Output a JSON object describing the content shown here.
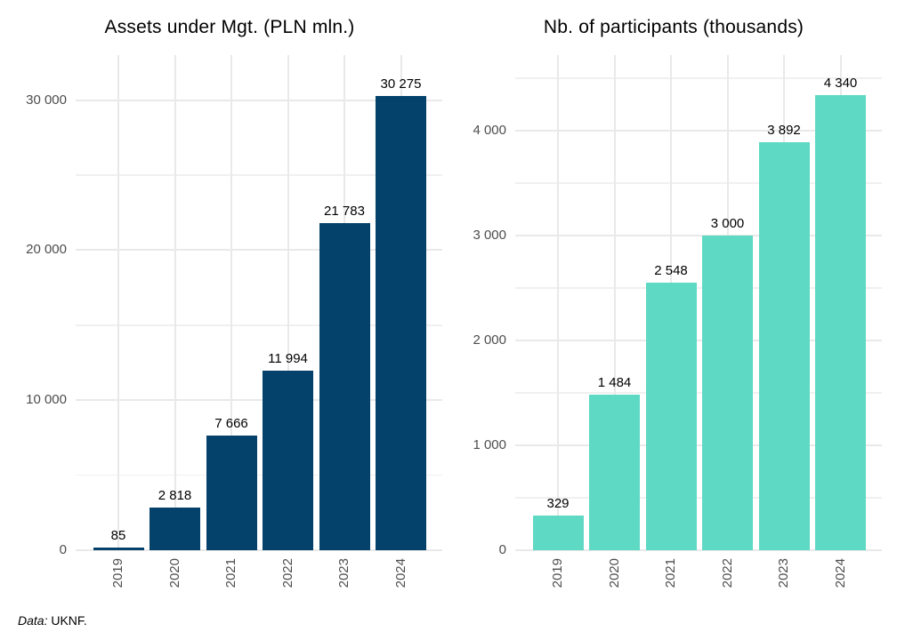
{
  "footer": {
    "source_label": "Data:",
    "source_value": " UKNF."
  },
  "colors": {
    "assets_bar": "#04426b",
    "participants_bar": "#5ed9c4",
    "axis_text": "#4d4d4d",
    "grid_major": "#e9e9e9",
    "grid_minor": "#f0f0f0",
    "title_text": "#000000"
  },
  "chart_data": [
    {
      "type": "bar",
      "title": "Assets under Mgt. (PLN mln.)",
      "xlabel": "",
      "ylabel": "",
      "categories": [
        "2019",
        "2020",
        "2021",
        "2022",
        "2023",
        "2024"
      ],
      "values": [
        85,
        2818,
        7666,
        11994,
        21783,
        30275
      ],
      "value_labels": [
        "85",
        "2 818",
        "7 666",
        "11 994",
        "21 783",
        "30 275"
      ],
      "bar_color": "#04426b",
      "ylim": [
        0,
        33000
      ],
      "yticks": [
        {
          "value": 0,
          "label": "0"
        },
        {
          "value": 10000,
          "label": "10 000"
        },
        {
          "value": 20000,
          "label": "20 000"
        },
        {
          "value": 30000,
          "label": "30 000"
        }
      ],
      "yticks_minor": [
        5000,
        15000,
        25000
      ],
      "grid": "on",
      "legend": "none"
    },
    {
      "type": "bar",
      "title": "Nb. of participants (thousands)",
      "xlabel": "",
      "ylabel": "",
      "categories": [
        "2019",
        "2020",
        "2021",
        "2022",
        "2023",
        "2024"
      ],
      "values": [
        329,
        1484,
        2548,
        3000,
        3892,
        4340
      ],
      "value_labels": [
        "329",
        "1 484",
        "2 548",
        "3 000",
        "3 892",
        "4 340"
      ],
      "bar_color": "#5ed9c4",
      "ylim": [
        0,
        4720
      ],
      "yticks": [
        {
          "value": 0,
          "label": "0"
        },
        {
          "value": 1000,
          "label": "1 000"
        },
        {
          "value": 2000,
          "label": "2 000"
        },
        {
          "value": 3000,
          "label": "3 000"
        },
        {
          "value": 4000,
          "label": "4 000"
        }
      ],
      "yticks_minor": [
        500,
        1500,
        2500,
        3500,
        4500
      ],
      "grid": "on",
      "legend": "none"
    }
  ]
}
